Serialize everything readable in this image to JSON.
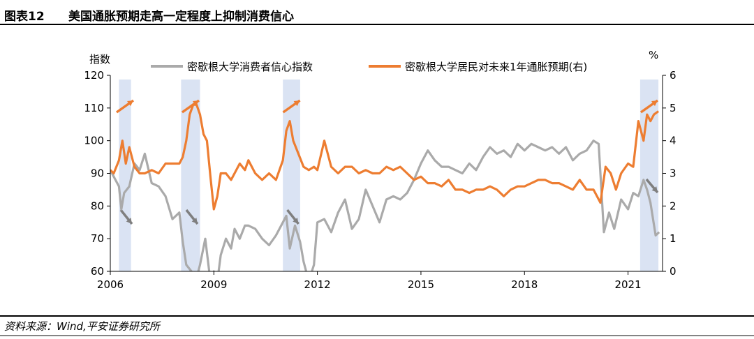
{
  "header": {
    "figure_label": "图表12",
    "title": "美国通胀预期走高一定程度上抑制消费信心"
  },
  "footer": {
    "source": "资料来源：Wind,平安证券研究所"
  },
  "chart_data": {
    "type": "line",
    "title": "",
    "left_axis": {
      "label": "指数",
      "ylim": [
        60,
        120
      ],
      "ticks": [
        60,
        70,
        80,
        90,
        100,
        110,
        120
      ]
    },
    "right_axis": {
      "label": "%",
      "ylim": [
        0,
        6
      ],
      "ticks": [
        0,
        1,
        2,
        3,
        4,
        5,
        6
      ]
    },
    "x_axis": {
      "xlim": [
        2006.0,
        2022.0
      ],
      "ticks": [
        "2006",
        "2009",
        "2012",
        "2015",
        "2018",
        "2021"
      ]
    },
    "legend_position": "top",
    "shaded_periods": [
      [
        2006.25,
        2006.6
      ],
      [
        2008.05,
        2008.6
      ],
      [
        2011.0,
        2011.5
      ],
      [
        2021.35,
        2021.88
      ]
    ],
    "colors": {
      "sentiment": "#aaaaaa",
      "expectation": "#ed7d31",
      "shade": "#dae3f3",
      "arrow_up": "#ed7d31",
      "arrow_down": "#7f7f7f"
    },
    "series": [
      {
        "name": "密歇根大学消费者信心指数",
        "axis": "left",
        "x": [
          2006.0,
          2006.15,
          2006.25,
          2006.32,
          2006.4,
          2006.55,
          2006.7,
          2006.85,
          2007.0,
          2007.2,
          2007.4,
          2007.6,
          2007.8,
          2008.0,
          2008.1,
          2008.2,
          2008.35,
          2008.5,
          2008.6,
          2008.75,
          2008.9,
          2009.0,
          2009.1,
          2009.2,
          2009.35,
          2009.5,
          2009.6,
          2009.75,
          2009.9,
          2010.0,
          2010.2,
          2010.4,
          2010.6,
          2010.8,
          2011.0,
          2011.1,
          2011.2,
          2011.35,
          2011.5,
          2011.6,
          2011.75,
          2011.9,
          2012.0,
          2012.2,
          2012.4,
          2012.6,
          2012.8,
          2013.0,
          2013.2,
          2013.4,
          2013.6,
          2013.8,
          2014.0,
          2014.2,
          2014.4,
          2014.6,
          2014.8,
          2015.0,
          2015.2,
          2015.4,
          2015.6,
          2015.8,
          2016.0,
          2016.2,
          2016.4,
          2016.6,
          2016.8,
          2017.0,
          2017.2,
          2017.4,
          2017.6,
          2017.8,
          2018.0,
          2018.2,
          2018.4,
          2018.6,
          2018.8,
          2019.0,
          2019.2,
          2019.4,
          2019.6,
          2019.8,
          2020.0,
          2020.15,
          2020.3,
          2020.45,
          2020.6,
          2020.8,
          2021.0,
          2021.15,
          2021.3,
          2021.45,
          2021.55,
          2021.65,
          2021.8,
          2021.9
        ],
        "values": [
          91,
          88,
          86,
          79,
          84,
          86,
          93,
          91,
          96,
          87,
          86,
          83,
          76,
          78,
          69,
          62,
          60,
          58,
          62,
          70,
          57,
          60,
          57,
          65,
          70,
          67,
          73,
          70,
          74,
          74,
          73,
          70,
          68,
          71,
          75,
          77,
          67,
          74,
          69,
          63,
          57,
          62,
          75,
          76,
          72,
          78,
          82,
          73,
          76,
          85,
          80,
          75,
          82,
          83,
          82,
          84,
          88,
          93,
          97,
          94,
          92,
          92,
          91,
          90,
          93,
          91,
          95,
          98,
          96,
          97,
          95,
          99,
          97,
          99,
          98,
          97,
          98,
          96,
          98,
          94,
          96,
          97,
          100,
          99,
          72,
          78,
          73,
          82,
          79,
          84,
          83,
          88,
          85,
          81,
          71,
          72
        ]
      },
      {
        "name": "密歇根大学居民对未来1年通胀预期(右)",
        "axis": "right",
        "x": [
          2006.0,
          2006.1,
          2006.25,
          2006.35,
          2006.45,
          2006.55,
          2006.7,
          2006.85,
          2007.0,
          2007.2,
          2007.4,
          2007.6,
          2007.8,
          2008.0,
          2008.1,
          2008.2,
          2008.3,
          2008.4,
          2008.5,
          2008.6,
          2008.7,
          2008.8,
          2008.9,
          2009.0,
          2009.1,
          2009.2,
          2009.35,
          2009.5,
          2009.6,
          2009.75,
          2009.9,
          2010.0,
          2010.2,
          2010.4,
          2010.6,
          2010.8,
          2011.0,
          2011.1,
          2011.2,
          2011.3,
          2011.45,
          2011.6,
          2011.75,
          2011.9,
          2012.0,
          2012.2,
          2012.4,
          2012.6,
          2012.8,
          2013.0,
          2013.2,
          2013.4,
          2013.6,
          2013.8,
          2014.0,
          2014.2,
          2014.4,
          2014.6,
          2014.8,
          2015.0,
          2015.2,
          2015.4,
          2015.6,
          2015.8,
          2016.0,
          2016.2,
          2016.4,
          2016.6,
          2016.8,
          2017.0,
          2017.2,
          2017.4,
          2017.6,
          2017.8,
          2018.0,
          2018.2,
          2018.4,
          2018.6,
          2018.8,
          2019.0,
          2019.2,
          2019.4,
          2019.6,
          2019.8,
          2020.0,
          2020.1,
          2020.2,
          2020.35,
          2020.5,
          2020.65,
          2020.8,
          2021.0,
          2021.15,
          2021.3,
          2021.45,
          2021.55,
          2021.65,
          2021.75,
          2021.88
        ],
        "values": [
          3.1,
          3.0,
          3.4,
          4.0,
          3.3,
          3.8,
          3.2,
          3.0,
          3.0,
          3.1,
          3.0,
          3.3,
          3.3,
          3.3,
          3.5,
          4.0,
          4.8,
          5.1,
          5.1,
          4.8,
          4.2,
          4.0,
          2.9,
          1.9,
          2.3,
          3.0,
          3.0,
          2.8,
          3.0,
          3.3,
          3.1,
          3.4,
          3.0,
          2.8,
          3.0,
          2.8,
          3.4,
          4.3,
          4.6,
          4.0,
          3.6,
          3.2,
          3.1,
          3.2,
          3.1,
          4.0,
          3.2,
          3.0,
          3.2,
          3.2,
          3.0,
          3.1,
          3.0,
          3.0,
          3.2,
          3.1,
          3.2,
          3.0,
          2.8,
          2.9,
          2.7,
          2.7,
          2.6,
          2.8,
          2.5,
          2.5,
          2.4,
          2.5,
          2.5,
          2.6,
          2.5,
          2.3,
          2.5,
          2.6,
          2.6,
          2.7,
          2.8,
          2.8,
          2.7,
          2.7,
          2.6,
          2.5,
          2.8,
          2.5,
          2.5,
          2.3,
          2.1,
          3.2,
          3.0,
          2.5,
          3.0,
          3.3,
          3.2,
          4.6,
          4.0,
          4.8,
          4.6,
          4.8,
          4.9
        ]
      }
    ]
  }
}
